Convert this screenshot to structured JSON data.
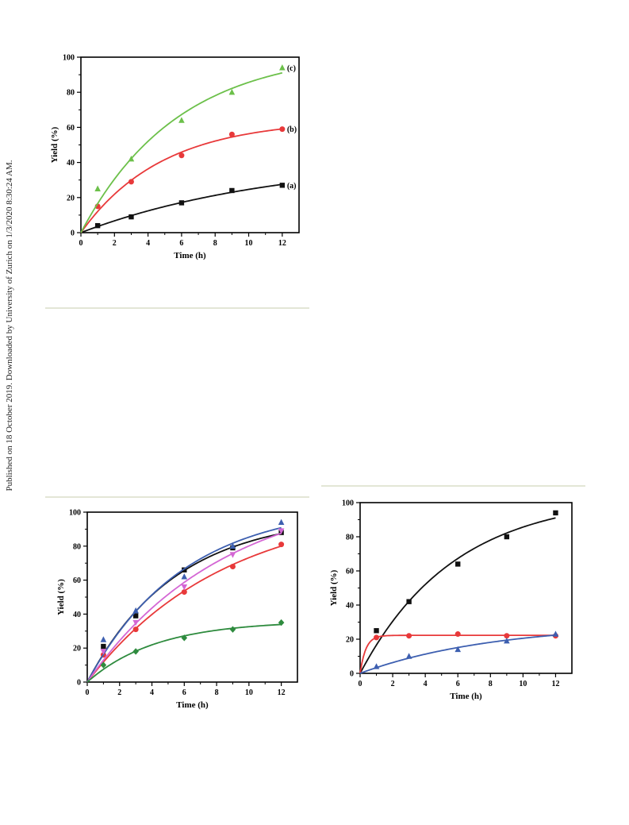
{
  "side_note": "Published on 18 October 2019. Downloaded by University of Zurich on 1/3/2020 8:30:24 AM.",
  "chart_data": [
    {
      "type": "line",
      "xlabel": "Time (h)",
      "ylabel": "Yield (%)",
      "xlim": [
        0,
        13
      ],
      "ylim": [
        0,
        100
      ],
      "xticks": [
        "0",
        "2",
        "4",
        "6",
        "8",
        "10",
        "12"
      ],
      "yticks": [
        "0",
        "20",
        "40",
        "60",
        "80",
        "100"
      ],
      "series": [
        {
          "name": "(a)",
          "color": "#111111",
          "marker": "square",
          "x": [
            1,
            3,
            6,
            9,
            12
          ],
          "y": [
            4,
            9,
            17,
            24,
            27
          ]
        },
        {
          "name": "(b)",
          "color": "#e8393a",
          "marker": "circle",
          "x": [
            1,
            3,
            6,
            9,
            12
          ],
          "y": [
            15,
            29,
            44,
            56,
            59
          ]
        },
        {
          "name": "(c)",
          "color": "#6cc04a",
          "marker": "triangle",
          "x": [
            1,
            3,
            6,
            9,
            12
          ],
          "y": [
            25,
            42,
            64,
            80,
            94
          ]
        }
      ]
    },
    {
      "type": "line",
      "xlabel": "Time (h)",
      "ylabel": "Yield (%)",
      "xlim": [
        0,
        13
      ],
      "ylim": [
        0,
        100
      ],
      "xticks": [
        "0",
        "2",
        "4",
        "6",
        "8",
        "10",
        "12"
      ],
      "yticks": [
        "0",
        "20",
        "40",
        "60",
        "80",
        "100"
      ],
      "series": [
        {
          "color": "#111111",
          "marker": "square",
          "x": [
            1,
            3,
            6,
            9,
            12
          ],
          "y": [
            21,
            39,
            66,
            79,
            88
          ]
        },
        {
          "color": "#e8393a",
          "marker": "circle",
          "x": [
            1,
            3,
            6,
            9,
            12
          ],
          "y": [
            16,
            31,
            53,
            68,
            81
          ]
        },
        {
          "color": "#3d5fb0",
          "marker": "triangle",
          "x": [
            1,
            3,
            6,
            9,
            12
          ],
          "y": [
            25,
            42,
            62,
            80,
            94
          ]
        },
        {
          "color": "#d466d4",
          "marker": "triangle-down",
          "x": [
            1,
            3,
            6,
            9,
            12
          ],
          "y": [
            18,
            35,
            56,
            75,
            89
          ]
        },
        {
          "color": "#2e8b3e",
          "marker": "diamond",
          "x": [
            1,
            3,
            6,
            9,
            12
          ],
          "y": [
            10,
            18,
            26,
            31,
            35
          ]
        }
      ]
    },
    {
      "type": "line",
      "xlabel": "Time (h)",
      "ylabel": "Yield (%)",
      "xlim": [
        0,
        13
      ],
      "ylim": [
        0,
        100
      ],
      "xticks": [
        "0",
        "2",
        "4",
        "6",
        "8",
        "10",
        "12"
      ],
      "yticks": [
        "0",
        "20",
        "40",
        "60",
        "80",
        "100"
      ],
      "series": [
        {
          "color": "#111111",
          "marker": "square",
          "x": [
            1,
            3,
            6,
            9,
            12
          ],
          "y": [
            25,
            42,
            64,
            80,
            94
          ]
        },
        {
          "color": "#e8393a",
          "marker": "circle",
          "x": [
            1,
            3,
            6,
            9,
            12
          ],
          "y": [
            21,
            22,
            23,
            22,
            22
          ]
        },
        {
          "color": "#3d5fb0",
          "marker": "triangle",
          "x": [
            1,
            3,
            6,
            9,
            12
          ],
          "y": [
            4,
            10,
            14,
            19,
            23
          ]
        }
      ]
    }
  ]
}
